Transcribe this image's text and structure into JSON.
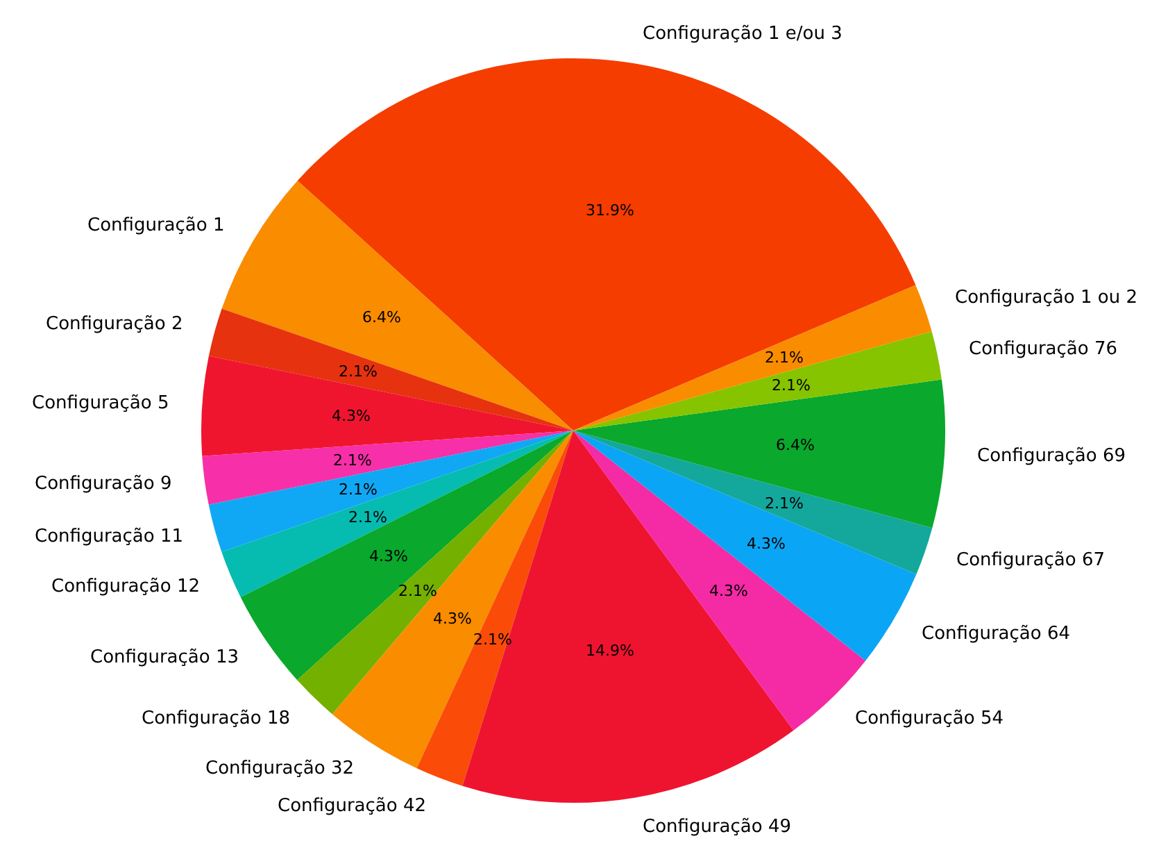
{
  "chart_data": {
    "type": "pie",
    "categories": [
      "Configuração 1 e/ou 3",
      "Configuração 1",
      "Configuração 2",
      "Configuração 5",
      "Configuração 9",
      "Configuração 11",
      "Configuração 12",
      "Configuração 13",
      "Configuração 18",
      "Configuração 32",
      "Configuração 42",
      "Configuração 49",
      "Configuração 54",
      "Configuração 64",
      "Configuração 67",
      "Configuração 69",
      "Configuração 76",
      "Configuração 1 ou 2"
    ],
    "values": [
      31.9,
      6.4,
      2.1,
      4.3,
      2.1,
      2.1,
      2.1,
      4.3,
      2.1,
      4.3,
      2.1,
      14.9,
      4.3,
      4.3,
      2.1,
      6.4,
      2.1,
      2.1
    ],
    "value_labels": [
      "31.9%",
      "6.4%",
      "2.1%",
      "4.3%",
      "2.1%",
      "2.1%",
      "2.1%",
      "4.3%",
      "2.1%",
      "4.3%",
      "2.1%",
      "14.9%",
      "4.3%",
      "4.3%",
      "2.1%",
      "6.4%",
      "2.1%",
      "2.1%"
    ],
    "colors": [
      "#f53d00",
      "#fa8c00",
      "#e6320f",
      "#f0152e",
      "#f72fa8",
      "#10a8f5",
      "#06bcb0",
      "#0aa82c",
      "#74b000",
      "#fa8c00",
      "#fa4c08",
      "#ee1430",
      "#f52aa5",
      "#0aa6f5",
      "#14a89c",
      "#0aa82c",
      "#86c400",
      "#fa8c00"
    ]
  }
}
